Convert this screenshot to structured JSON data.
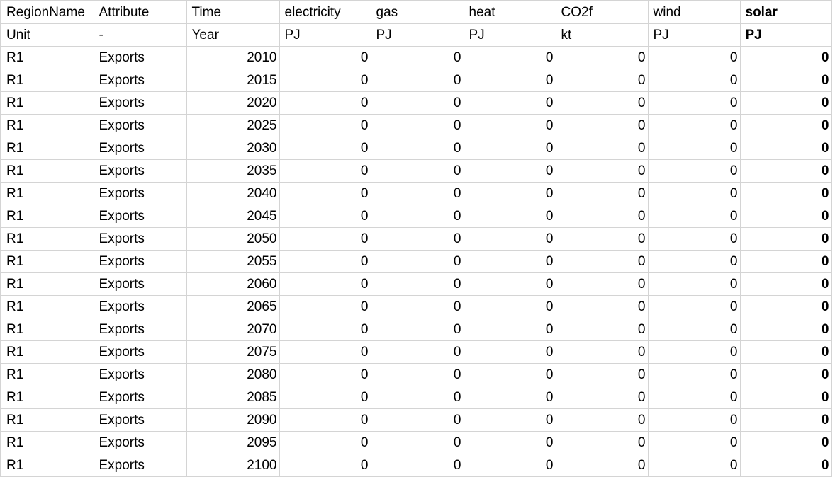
{
  "sheet": {
    "header": [
      "RegionName",
      "Attribute",
      "Time",
      "electricity",
      "gas",
      "heat",
      "CO2f",
      "wind",
      "solar"
    ],
    "units": [
      "Unit",
      "-",
      "Year",
      "PJ",
      "PJ",
      "PJ",
      "kt",
      "PJ",
      "PJ"
    ],
    "rows": [
      [
        "R1",
        "Exports",
        "2010",
        "0",
        "0",
        "0",
        "0",
        "0",
        "0"
      ],
      [
        "R1",
        "Exports",
        "2015",
        "0",
        "0",
        "0",
        "0",
        "0",
        "0"
      ],
      [
        "R1",
        "Exports",
        "2020",
        "0",
        "0",
        "0",
        "0",
        "0",
        "0"
      ],
      [
        "R1",
        "Exports",
        "2025",
        "0",
        "0",
        "0",
        "0",
        "0",
        "0"
      ],
      [
        "R1",
        "Exports",
        "2030",
        "0",
        "0",
        "0",
        "0",
        "0",
        "0"
      ],
      [
        "R1",
        "Exports",
        "2035",
        "0",
        "0",
        "0",
        "0",
        "0",
        "0"
      ],
      [
        "R1",
        "Exports",
        "2040",
        "0",
        "0",
        "0",
        "0",
        "0",
        "0"
      ],
      [
        "R1",
        "Exports",
        "2045",
        "0",
        "0",
        "0",
        "0",
        "0",
        "0"
      ],
      [
        "R1",
        "Exports",
        "2050",
        "0",
        "0",
        "0",
        "0",
        "0",
        "0"
      ],
      [
        "R1",
        "Exports",
        "2055",
        "0",
        "0",
        "0",
        "0",
        "0",
        "0"
      ],
      [
        "R1",
        "Exports",
        "2060",
        "0",
        "0",
        "0",
        "0",
        "0",
        "0"
      ],
      [
        "R1",
        "Exports",
        "2065",
        "0",
        "0",
        "0",
        "0",
        "0",
        "0"
      ],
      [
        "R1",
        "Exports",
        "2070",
        "0",
        "0",
        "0",
        "0",
        "0",
        "0"
      ],
      [
        "R1",
        "Exports",
        "2075",
        "0",
        "0",
        "0",
        "0",
        "0",
        "0"
      ],
      [
        "R1",
        "Exports",
        "2080",
        "0",
        "0",
        "0",
        "0",
        "0",
        "0"
      ],
      [
        "R1",
        "Exports",
        "2085",
        "0",
        "0",
        "0",
        "0",
        "0",
        "0"
      ],
      [
        "R1",
        "Exports",
        "2090",
        "0",
        "0",
        "0",
        "0",
        "0",
        "0"
      ],
      [
        "R1",
        "Exports",
        "2095",
        "0",
        "0",
        "0",
        "0",
        "0",
        "0"
      ],
      [
        "R1",
        "Exports",
        "2100",
        "0",
        "0",
        "0",
        "0",
        "0",
        "0"
      ]
    ]
  }
}
